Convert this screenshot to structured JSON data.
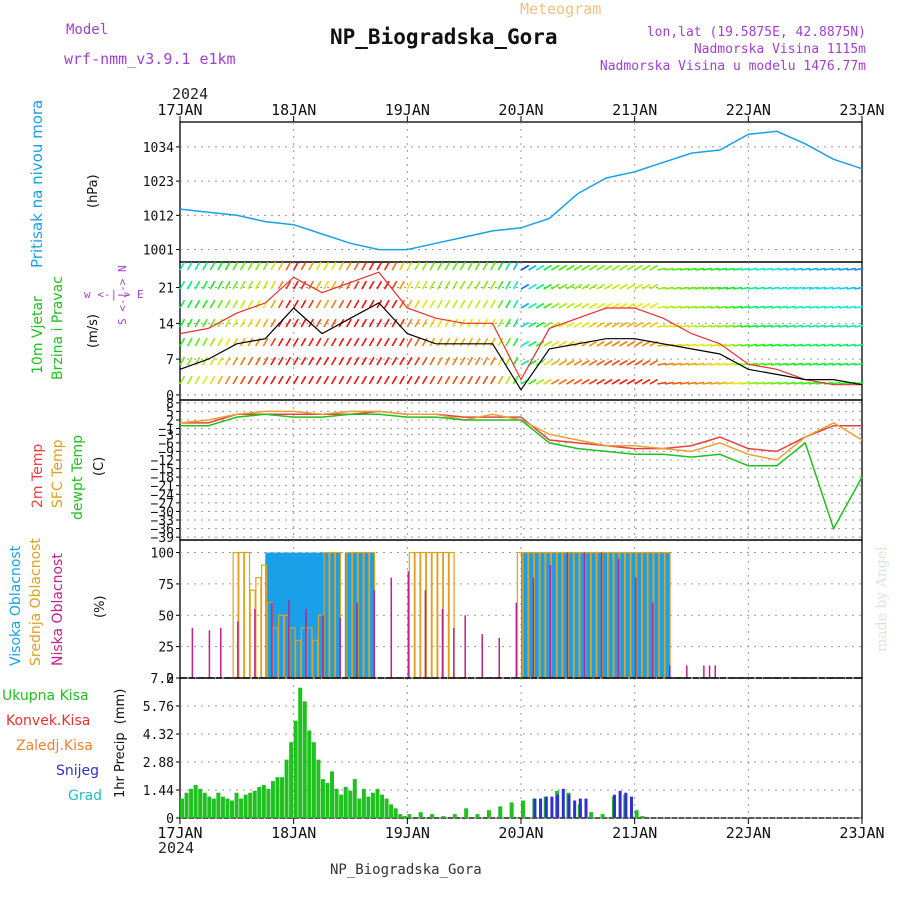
{
  "header": {
    "model_label": "Model",
    "model_value": "wrf-nmm_v3.9.1 e1km",
    "meteogram_label": "Meteogram",
    "title": "NP_Biogradska_Gora",
    "lonlat": "lon,lat (19.5875E, 42.8875N)",
    "elevation": "Nadmorska Visina 1115m",
    "model_elevation": "Nadmorska Visina u modelu 1476.77m",
    "year_top": "2024",
    "year_bottom": "2024",
    "footer_station": "NP_Biogradska_Gora",
    "made_by": "made by Angel"
  },
  "colors": {
    "pressure": "#1aa0e8",
    "temp2m": "#e84040",
    "sfc_temp": "#e8a030",
    "dewpt": "#20c020",
    "cloud_high": "#1aa0e8",
    "cloud_mid": "#e0a020",
    "cloud_low": "#c0208a",
    "rain_total": "#20c020",
    "rain_conv": "#e83030",
    "rain_frz": "#f08030",
    "snow": "#3030d0",
    "grad": "#20c0c0",
    "model_label": "#a040d0"
  },
  "chart_data": [
    {
      "id": "pressure",
      "type": "line",
      "ylabel_lines": [
        "Pritisak na nivou mora",
        "(hPa)"
      ],
      "x_days": [
        "17JAN",
        "18JAN",
        "19JAN",
        "20JAN",
        "21JAN",
        "22JAN",
        "23JAN"
      ],
      "yticks": [
        1001,
        1012,
        1023,
        1034
      ],
      "ylim": [
        997,
        1042
      ],
      "grid": true,
      "x": [
        0,
        0.25,
        0.5,
        0.75,
        1.0,
        1.25,
        1.5,
        1.75,
        2.0,
        2.25,
        2.5,
        2.75,
        3.0,
        3.25,
        3.5,
        3.75,
        4.0,
        4.25,
        4.5,
        4.75,
        5.0,
        5.25,
        5.5,
        5.75,
        6.0
      ],
      "y": [
        1014,
        1013,
        1012,
        1010,
        1009,
        1006,
        1003,
        1001,
        1001,
        1003,
        1005,
        1007,
        1008,
        1011,
        1019,
        1024,
        1026,
        1029,
        1032,
        1033,
        1038,
        1039,
        1035,
        1030,
        1027
      ]
    },
    {
      "id": "wind",
      "type": "line",
      "ylabel_lines": [
        "10m Vjetar",
        "Brzina i Pravac",
        "(m/s)"
      ],
      "side_label": "w <-|-> E",
      "side_label2": "S <-|-> N",
      "yticks": [
        0,
        7,
        14,
        21
      ],
      "ylim": [
        -1,
        26
      ],
      "grid": true,
      "series": [
        {
          "name": "speed",
          "x": [
            0,
            0.25,
            0.5,
            0.75,
            1.0,
            1.25,
            1.5,
            1.75,
            2.0,
            2.25,
            2.5,
            2.75,
            3.0,
            3.25,
            3.5,
            3.75,
            4.0,
            4.25,
            4.5,
            4.75,
            5.0,
            5.25,
            5.5,
            5.75,
            6.0
          ],
          "y": [
            5,
            7,
            10,
            11,
            17,
            12,
            15,
            18,
            12,
            10,
            10,
            10,
            1,
            9,
            10,
            11,
            11,
            10,
            9,
            8,
            5,
            4,
            3,
            3,
            2
          ]
        },
        {
          "name": "gust",
          "x": [
            0,
            0.25,
            0.5,
            0.75,
            1.0,
            1.25,
            1.5,
            1.75,
            2.0,
            2.25,
            2.5,
            2.75,
            3.0,
            3.25,
            3.5,
            3.75,
            4.0,
            4.25,
            4.5,
            4.75,
            5.0,
            5.25,
            5.5,
            5.75,
            6.0
          ],
          "y": [
            12,
            13,
            16,
            18,
            23,
            20,
            22,
            24,
            17,
            15,
            14,
            14,
            3,
            13,
            15,
            17,
            17,
            15,
            12,
            10,
            6,
            5,
            3,
            2,
            2
          ]
        }
      ]
    },
    {
      "id": "temperature",
      "type": "line",
      "ylabel_lines": [
        "2m Temp",
        "SFC Temp",
        "dewpt Temp",
        "(C)"
      ],
      "yticks": [
        8,
        5,
        2,
        -1,
        -3,
        -6,
        -9,
        -12,
        -15,
        -18,
        -21,
        -24,
        -27,
        -30,
        -33,
        -36,
        -39
      ],
      "ylim": [
        -40,
        9
      ],
      "grid": true,
      "series": [
        {
          "name": "2m Temp",
          "x": [
            0,
            0.25,
            0.5,
            0.75,
            1.0,
            1.25,
            1.5,
            1.75,
            2.0,
            2.25,
            2.5,
            2.75,
            3.0,
            3.25,
            3.5,
            3.75,
            4.0,
            4.25,
            4.5,
            4.75,
            5.0,
            5.25,
            5.5,
            5.75,
            6.0
          ],
          "y": [
            1,
            1,
            4,
            4,
            4,
            4,
            4,
            5,
            4,
            4,
            3,
            3,
            3,
            -5,
            -6,
            -7,
            -8,
            -8,
            -7,
            -4,
            -8,
            -9,
            -4,
            0,
            0
          ]
        },
        {
          "name": "SFC Temp",
          "x": [
            0,
            0.25,
            0.5,
            0.75,
            1.0,
            1.25,
            1.5,
            1.75,
            2.0,
            2.25,
            2.5,
            2.75,
            3.0,
            3.25,
            3.5,
            3.75,
            4.0,
            4.25,
            4.5,
            4.75,
            5.0,
            5.25,
            5.5,
            5.75,
            6.0
          ],
          "y": [
            1,
            2,
            4,
            5,
            5,
            4,
            5,
            5,
            4,
            4,
            2,
            4,
            2,
            -3,
            -5,
            -7,
            -7,
            -8,
            -9,
            -6,
            -10,
            -12,
            -4,
            1,
            -5
          ]
        },
        {
          "name": "dewpt Temp",
          "x": [
            0,
            0.25,
            0.5,
            0.75,
            1.0,
            1.25,
            1.5,
            1.75,
            2.0,
            2.25,
            2.5,
            2.75,
            3.0,
            3.25,
            3.5,
            3.75,
            4.0,
            4.25,
            4.5,
            4.75,
            5.0,
            5.25,
            5.5,
            5.75,
            6.0
          ],
          "y": [
            0,
            0,
            3,
            4,
            3,
            3,
            4,
            4,
            3,
            3,
            2,
            2,
            2,
            -6,
            -8,
            -9,
            -10,
            -10,
            -11,
            -10,
            -14,
            -14,
            -6,
            -36,
            -18
          ]
        }
      ]
    },
    {
      "id": "clouds",
      "type": "bar",
      "ylabel_lines": [
        "Visoka Oblacnost",
        "Srednja Oblacnost",
        "Niska Oblacnost",
        "(%)"
      ],
      "yticks": [
        0,
        25,
        50,
        75,
        100
      ],
      "ylim": [
        0,
        100
      ],
      "grid": true,
      "series": [
        {
          "name": "Visoka Oblacnost",
          "x": [
            0.75,
            0.8,
            0.85,
            0.9,
            0.95,
            1.0,
            1.05,
            1.1,
            1.15,
            1.2,
            1.25,
            1.3,
            1.35,
            1.45,
            1.5,
            1.55,
            1.6,
            1.65,
            3.0,
            3.05,
            3.1,
            3.15,
            3.2,
            3.25,
            3.3,
            3.35,
            3.4,
            3.45,
            3.5,
            3.55,
            3.6,
            3.65,
            3.7,
            3.75,
            3.8,
            3.85,
            3.9,
            3.95,
            4.0,
            4.05,
            4.1,
            4.15,
            4.2,
            4.25
          ],
          "y": [
            100,
            100,
            100,
            100,
            100,
            100,
            100,
            100,
            100,
            100,
            100,
            100,
            100,
            100,
            100,
            100,
            100,
            100,
            100,
            100,
            100,
            100,
            100,
            100,
            100,
            100,
            100,
            100,
            100,
            100,
            100,
            100,
            100,
            100,
            100,
            100,
            100,
            100,
            100,
            100,
            100,
            100,
            100,
            100
          ]
        },
        {
          "name": "Srednja Oblacnost",
          "x": [
            0.45,
            0.5,
            0.55,
            0.6,
            0.65,
            0.7,
            0.75,
            0.8,
            0.85,
            0.9,
            0.95,
            1.0,
            1.05,
            1.1,
            1.15,
            1.2,
            1.25,
            1.3,
            1.35,
            1.45,
            1.5,
            1.55,
            1.6,
            1.65,
            2.0,
            2.05,
            2.1,
            2.15,
            2.2,
            2.25,
            2.3,
            2.35,
            2.95,
            3.0,
            3.05,
            3.1,
            3.15,
            3.2,
            3.25,
            3.3,
            3.35,
            3.4,
            3.45,
            3.5,
            3.55,
            3.6,
            3.65,
            3.7,
            3.75,
            3.8,
            3.85,
            3.9,
            3.95,
            4.0,
            4.05,
            4.1,
            4.15,
            4.2,
            4.25
          ],
          "y": [
            100,
            100,
            100,
            70,
            80,
            90,
            60,
            40,
            50,
            50,
            40,
            30,
            40,
            40,
            30,
            50,
            100,
            100,
            100,
            100,
            100,
            100,
            100,
            100,
            100,
            100,
            100,
            100,
            100,
            100,
            100,
            100,
            100,
            100,
            100,
            100,
            100,
            100,
            100,
            100,
            100,
            100,
            100,
            100,
            100,
            100,
            100,
            100,
            100,
            100,
            100,
            100,
            100,
            100,
            100,
            100,
            100,
            100,
            100
          ]
        },
        {
          "name": "Niska Oblacnost",
          "x": [
            0.1,
            0.25,
            0.35,
            0.5,
            0.65,
            0.8,
            0.95,
            1.1,
            1.25,
            1.4,
            1.55,
            1.7,
            1.85,
            2.0,
            2.15,
            2.3,
            2.4,
            2.5,
            2.65,
            2.8,
            2.95,
            3.1,
            3.25,
            3.4,
            3.55,
            3.7,
            3.85,
            4.0,
            4.15,
            4.3,
            4.45,
            4.6,
            4.65,
            4.7
          ],
          "y": [
            40,
            38,
            40,
            45,
            55,
            60,
            62,
            55,
            50,
            48,
            60,
            70,
            80,
            85,
            70,
            55,
            40,
            50,
            35,
            32,
            60,
            80,
            90,
            100,
            100,
            100,
            95,
            80,
            60,
            10,
            10,
            10,
            10,
            10
          ]
        }
      ]
    },
    {
      "id": "precip",
      "type": "bar",
      "ylabel_lines": [
        "1hr Precip",
        "(mm)"
      ],
      "legend": [
        "Ukupna Kisa",
        "Konvek.Kisa",
        "Zaledj.Kisa",
        "Snijeg",
        "Grad"
      ],
      "yticks": [
        0,
        1.44,
        2.88,
        4.32,
        5.76,
        7.2
      ],
      "ylim": [
        0,
        7.2
      ],
      "grid": true,
      "x_days": [
        "17JAN",
        "18JAN",
        "19JAN",
        "20JAN",
        "21JAN",
        "22JAN",
        "23JAN"
      ],
      "series": [
        {
          "name": "Ukupna Kisa",
          "x": [
            0.0,
            0.04,
            0.08,
            0.12,
            0.16,
            0.2,
            0.24,
            0.28,
            0.32,
            0.36,
            0.4,
            0.44,
            0.48,
            0.52,
            0.56,
            0.6,
            0.64,
            0.68,
            0.72,
            0.76,
            0.8,
            0.84,
            0.88,
            0.92,
            0.96,
            1.0,
            1.04,
            1.08,
            1.12,
            1.16,
            1.2,
            1.24,
            1.28,
            1.32,
            1.36,
            1.4,
            1.44,
            1.48,
            1.52,
            1.56,
            1.6,
            1.64,
            1.68,
            1.72,
            1.76,
            1.8,
            1.84,
            1.88,
            1.92,
            1.96,
            2.0,
            2.1,
            2.2,
            2.3,
            2.4,
            2.5,
            2.6,
            2.7,
            2.8,
            2.9,
            3.0,
            3.1,
            3.2,
            3.3,
            3.4,
            3.5,
            3.6,
            3.7,
            3.8,
            3.9,
            4.0,
            4.05
          ],
          "y": [
            1.0,
            1.3,
            1.5,
            1.7,
            1.5,
            1.3,
            1.1,
            1.0,
            1.3,
            1.1,
            1.0,
            0.9,
            1.3,
            1.0,
            1.2,
            1.3,
            1.4,
            1.6,
            1.7,
            1.5,
            1.9,
            2.1,
            2.1,
            3.0,
            3.9,
            5.0,
            6.7,
            6.0,
            4.5,
            3.9,
            3.0,
            2.0,
            1.8,
            2.4,
            1.5,
            1.2,
            1.6,
            1.4,
            2.0,
            1.0,
            1.5,
            1.1,
            1.3,
            1.5,
            1.2,
            1.0,
            0.7,
            0.5,
            0.2,
            0.1,
            0.2,
            0.3,
            0.2,
            0.1,
            0.2,
            0.5,
            0.2,
            0.4,
            0.6,
            0.8,
            0.9,
            1.0,
            1.1,
            1.4,
            1.3,
            0.7,
            0.3,
            0.2,
            1.1,
            1.2,
            0.4,
            0.1
          ]
        },
        {
          "name": "Snijeg",
          "x": [
            3.1,
            3.15,
            3.2,
            3.25,
            3.3,
            3.35,
            3.4,
            3.45,
            3.5,
            3.55,
            3.8,
            3.85,
            3.9,
            3.95
          ],
          "y": [
            1.0,
            1.0,
            1.1,
            1.1,
            1.2,
            1.5,
            1.2,
            0.9,
            1.0,
            1.0,
            1.2,
            1.4,
            1.3,
            1.1
          ]
        }
      ]
    }
  ]
}
